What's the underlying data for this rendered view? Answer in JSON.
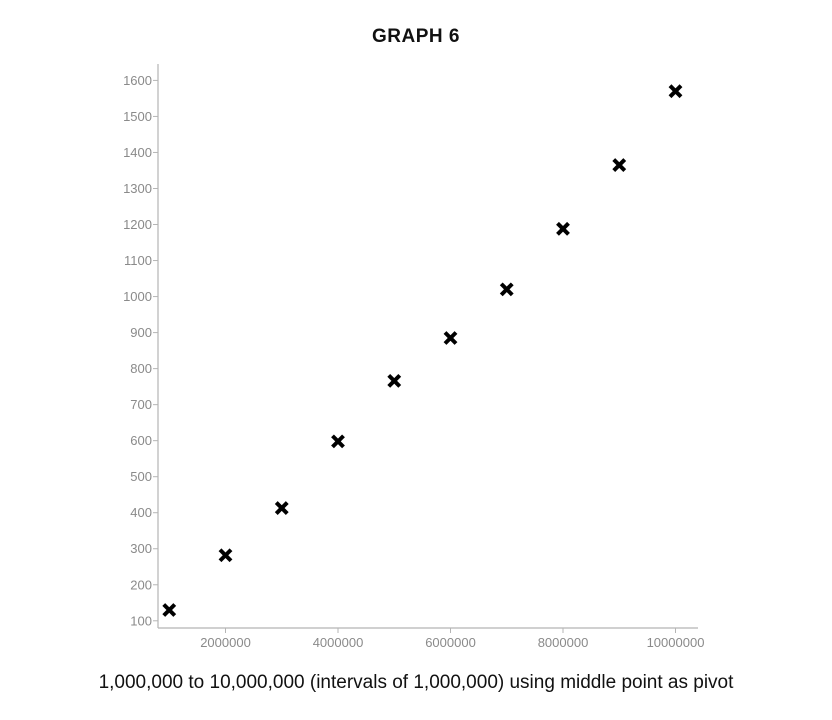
{
  "chart_data": {
    "type": "scatter",
    "title": "GRAPH 6",
    "caption": "1,000,000 to 10,000,000  (intervals of 1,000,000) using middle point as pivot",
    "xlabel": "",
    "ylabel": "",
    "xlim": [
      800000,
      10400000
    ],
    "ylim": [
      80,
      1640
    ],
    "x_ticks": [
      2000000,
      4000000,
      6000000,
      8000000,
      10000000
    ],
    "x_tick_labels": [
      "2000000",
      "4000000",
      "6000000",
      "8000000",
      "10000000"
    ],
    "y_ticks": [
      100,
      200,
      300,
      400,
      500,
      600,
      700,
      800,
      900,
      1000,
      1100,
      1200,
      1300,
      1400,
      1500,
      1600
    ],
    "y_tick_labels": [
      "100",
      "200",
      "300",
      "400",
      "500",
      "600",
      "700",
      "800",
      "900",
      "1000",
      "1100",
      "1200",
      "1300",
      "1400",
      "1500",
      "1600"
    ],
    "grid": false,
    "legend": "none",
    "marker": "x",
    "marker_color": "#000000",
    "axis_color": "#b5b5b5",
    "tick_label_color": "#8a8a8a",
    "series": [
      {
        "x": [
          1000000,
          2000000,
          3000000,
          4000000,
          5000000,
          6000000,
          7000000,
          8000000,
          9000000,
          10000000
        ],
        "y": [
          130,
          282,
          413,
          598,
          766,
          885,
          1020,
          1188,
          1365,
          1570
        ]
      }
    ]
  }
}
